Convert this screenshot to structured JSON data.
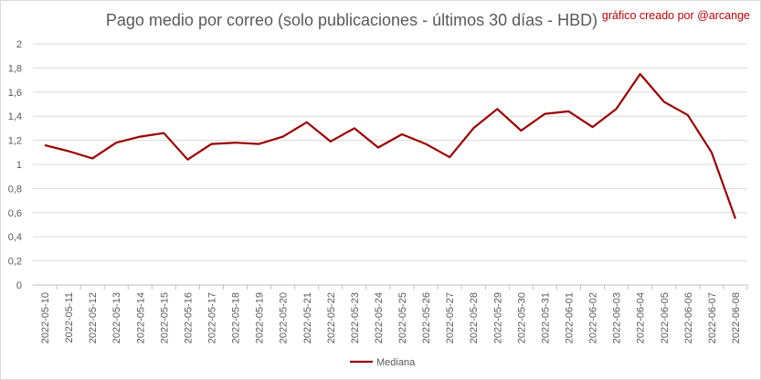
{
  "header": {
    "title": "Pago medio por correo (solo publicaciones - últimos 30 días - HBD)",
    "credit": "gráfico creado por @arcange"
  },
  "chart_data": {
    "type": "line",
    "title": "Pago medio por correo (solo publicaciones - últimos 30 días - HBD)",
    "xlabel": "",
    "ylabel": "",
    "ylim": [
      0,
      2
    ],
    "yticks": [
      "0",
      "0,2",
      "0,4",
      "0,6",
      "0,8",
      "1",
      "1,2",
      "1,4",
      "1,6",
      "1,8",
      "2"
    ],
    "grid": true,
    "legend": "bottom",
    "categories": [
      "2022-05-10",
      "2022-05-11",
      "2022-05-12",
      "2022-05-13",
      "2022-05-14",
      "2022-05-15",
      "2022-05-16",
      "2022-05-17",
      "2022-05-18",
      "2022-05-19",
      "2022-05-20",
      "2022-05-21",
      "2022-05-22",
      "2022-05-23",
      "2022-05-24",
      "2022-05-25",
      "2022-05-26",
      "2022-05-27",
      "2022-05-28",
      "2022-05-29",
      "2022-05-30",
      "2022-05-31",
      "2022-06-01",
      "2022-06-02",
      "2022-06-03",
      "2022-06-04",
      "2022-06-05",
      "2022-06-06",
      "2022-06-07",
      "2022-06-08"
    ],
    "series": [
      {
        "name": "Mediana",
        "color": "#9c0000",
        "values": [
          1.16,
          1.11,
          1.05,
          1.18,
          1.23,
          1.26,
          1.04,
          1.17,
          1.18,
          1.17,
          1.23,
          1.35,
          1.19,
          1.3,
          1.14,
          1.25,
          1.17,
          1.06,
          1.3,
          1.46,
          1.28,
          1.42,
          1.44,
          1.31,
          1.46,
          1.75,
          1.52,
          1.41,
          1.1,
          0.55
        ]
      }
    ]
  }
}
